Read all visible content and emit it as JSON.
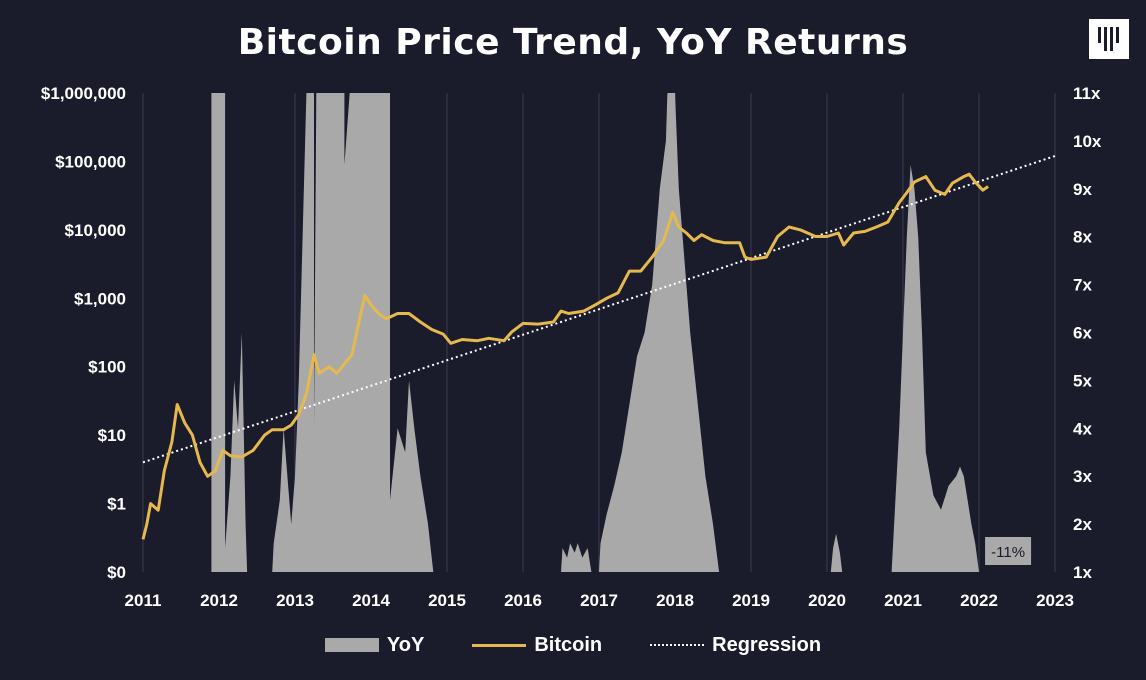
{
  "chart_data": {
    "type": "line",
    "title": "Bitcoin Price Trend, YoY Returns",
    "x_ticks": [
      "2011",
      "2012",
      "2013",
      "2014",
      "2015",
      "2016",
      "2017",
      "2018",
      "2019",
      "2020",
      "2021",
      "2022",
      "2023"
    ],
    "y_left_ticks": [
      "$0",
      "$1",
      "$10",
      "$100",
      "$1,000",
      "$10,000",
      "$100,000",
      "$1,000,000"
    ],
    "y_right_ticks": [
      "1x",
      "2x",
      "3x",
      "4x",
      "5x",
      "6x",
      "7x",
      "8x",
      "9x",
      "10x",
      "11x"
    ],
    "y_left_scale": "log",
    "grid": "vertical",
    "legend_position": "bottom",
    "annotation": "-11%",
    "colors": {
      "background": "#1a1b2b",
      "yoy": "#a9a9a9",
      "bitcoin": "#e5b94e",
      "regression": "#ffffff"
    },
    "series": [
      {
        "name": "Bitcoin",
        "axis": "left",
        "points": [
          [
            2011.0,
            0.3
          ],
          [
            2011.05,
            0.5
          ],
          [
            2011.1,
            1.0
          ],
          [
            2011.2,
            0.8
          ],
          [
            2011.28,
            3.0
          ],
          [
            2011.38,
            8.0
          ],
          [
            2011.45,
            28.0
          ],
          [
            2011.55,
            15.0
          ],
          [
            2011.65,
            10.0
          ],
          [
            2011.75,
            4.0
          ],
          [
            2011.85,
            2.5
          ],
          [
            2011.95,
            3.0
          ],
          [
            2012.05,
            6.0
          ],
          [
            2012.15,
            5.0
          ],
          [
            2012.3,
            4.8
          ],
          [
            2012.45,
            6.0
          ],
          [
            2012.6,
            10.0
          ],
          [
            2012.7,
            12.0
          ],
          [
            2012.85,
            12.0
          ],
          [
            2012.95,
            14.0
          ],
          [
            2013.05,
            20.0
          ],
          [
            2013.15,
            40.0
          ],
          [
            2013.25,
            150.0
          ],
          [
            2013.32,
            80.0
          ],
          [
            2013.45,
            100.0
          ],
          [
            2013.55,
            80.0
          ],
          [
            2013.65,
            110.0
          ],
          [
            2013.75,
            150.0
          ],
          [
            2013.85,
            500.0
          ],
          [
            2013.92,
            1100.0
          ],
          [
            2014.0,
            800.0
          ],
          [
            2014.1,
            600.0
          ],
          [
            2014.2,
            500.0
          ],
          [
            2014.35,
            600.0
          ],
          [
            2014.5,
            600.0
          ],
          [
            2014.65,
            450.0
          ],
          [
            2014.8,
            350.0
          ],
          [
            2014.95,
            300.0
          ],
          [
            2015.05,
            220.0
          ],
          [
            2015.2,
            250.0
          ],
          [
            2015.4,
            240.0
          ],
          [
            2015.55,
            260.0
          ],
          [
            2015.75,
            240.0
          ],
          [
            2015.85,
            320.0
          ],
          [
            2016.0,
            430.0
          ],
          [
            2016.2,
            420.0
          ],
          [
            2016.4,
            450.0
          ],
          [
            2016.5,
            650.0
          ],
          [
            2016.6,
            600.0
          ],
          [
            2016.8,
            650.0
          ],
          [
            2016.95,
            800.0
          ],
          [
            2017.1,
            1000.0
          ],
          [
            2017.25,
            1200.0
          ],
          [
            2017.4,
            2500.0
          ],
          [
            2017.55,
            2500.0
          ],
          [
            2017.7,
            4000.0
          ],
          [
            2017.85,
            7000.0
          ],
          [
            2017.97,
            18000.0
          ],
          [
            2018.05,
            11000.0
          ],
          [
            2018.15,
            9000.0
          ],
          [
            2018.25,
            7000.0
          ],
          [
            2018.35,
            8500.0
          ],
          [
            2018.5,
            7000.0
          ],
          [
            2018.65,
            6500.0
          ],
          [
            2018.85,
            6500.0
          ],
          [
            2018.92,
            4000.0
          ],
          [
            2019.0,
            3700.0
          ],
          [
            2019.2,
            4000.0
          ],
          [
            2019.35,
            8000.0
          ],
          [
            2019.5,
            11000.0
          ],
          [
            2019.65,
            10000.0
          ],
          [
            2019.85,
            8000.0
          ],
          [
            2020.0,
            8000.0
          ],
          [
            2020.15,
            9000.0
          ],
          [
            2020.22,
            6000.0
          ],
          [
            2020.35,
            9000.0
          ],
          [
            2020.5,
            9500.0
          ],
          [
            2020.65,
            11000.0
          ],
          [
            2020.8,
            13000.0
          ],
          [
            2020.95,
            25000.0
          ],
          [
            2021.05,
            35000.0
          ],
          [
            2021.15,
            50000.0
          ],
          [
            2021.3,
            60000.0
          ],
          [
            2021.42,
            38000.0
          ],
          [
            2021.55,
            33000.0
          ],
          [
            2021.65,
            48000.0
          ],
          [
            2021.8,
            60000.0
          ],
          [
            2021.87,
            65000.0
          ],
          [
            2021.95,
            50000.0
          ],
          [
            2022.05,
            38000.0
          ],
          [
            2022.12,
            43000.0
          ]
        ]
      },
      {
        "name": "Regression",
        "axis": "left",
        "points": [
          [
            2011.0,
            4.0
          ],
          [
            2023.0,
            120000.0
          ]
        ]
      },
      {
        "name": "YoY",
        "axis": "right",
        "points": [
          [
            2011.0,
            1.0
          ],
          [
            2011.9,
            1.0
          ],
          [
            2011.9,
            11.0
          ],
          [
            2012.08,
            11.0
          ],
          [
            2012.08,
            1.5
          ],
          [
            2012.15,
            3.0
          ],
          [
            2012.2,
            5.0
          ],
          [
            2012.25,
            4.0
          ],
          [
            2012.3,
            6.0
          ],
          [
            2012.35,
            2.0
          ],
          [
            2012.37,
            1.0
          ],
          [
            2012.7,
            1.0
          ],
          [
            2012.72,
            1.6
          ],
          [
            2012.8,
            2.5
          ],
          [
            2012.85,
            4.0
          ],
          [
            2012.9,
            3.0
          ],
          [
            2012.95,
            2.0
          ],
          [
            2013.0,
            3.0
          ],
          [
            2013.05,
            5.0
          ],
          [
            2013.1,
            8.0
          ],
          [
            2013.15,
            11.0
          ],
          [
            2013.25,
            11.0
          ],
          [
            2013.25,
            4.0
          ],
          [
            2013.28,
            11.0
          ],
          [
            2013.65,
            11.0
          ],
          [
            2013.65,
            9.5
          ],
          [
            2013.72,
            11.0
          ],
          [
            2014.25,
            11.0
          ],
          [
            2014.25,
            2.5
          ],
          [
            2014.35,
            4.0
          ],
          [
            2014.45,
            3.5
          ],
          [
            2014.5,
            5.0
          ],
          [
            2014.57,
            4.0
          ],
          [
            2014.65,
            3.0
          ],
          [
            2014.75,
            2.0
          ],
          [
            2014.82,
            1.0
          ],
          [
            2016.5,
            1.0
          ],
          [
            2016.52,
            1.5
          ],
          [
            2016.58,
            1.3
          ],
          [
            2016.62,
            1.6
          ],
          [
            2016.68,
            1.4
          ],
          [
            2016.72,
            1.6
          ],
          [
            2016.78,
            1.3
          ],
          [
            2016.85,
            1.5
          ],
          [
            2016.9,
            1.0
          ],
          [
            2017.0,
            1.0
          ],
          [
            2017.02,
            1.6
          ],
          [
            2017.1,
            2.2
          ],
          [
            2017.2,
            2.8
          ],
          [
            2017.3,
            3.5
          ],
          [
            2017.4,
            4.5
          ],
          [
            2017.5,
            5.5
          ],
          [
            2017.6,
            6.0
          ],
          [
            2017.7,
            7.0
          ],
          [
            2017.8,
            9.0
          ],
          [
            2017.88,
            10.0
          ],
          [
            2017.9,
            11.0
          ],
          [
            2018.0,
            11.0
          ],
          [
            2018.05,
            9.0
          ],
          [
            2018.1,
            8.0
          ],
          [
            2018.15,
            7.0
          ],
          [
            2018.2,
            6.0
          ],
          [
            2018.3,
            4.5
          ],
          [
            2018.4,
            3.0
          ],
          [
            2018.5,
            2.0
          ],
          [
            2018.58,
            1.0
          ],
          [
            2020.05,
            1.0
          ],
          [
            2020.08,
            1.5
          ],
          [
            2020.12,
            1.8
          ],
          [
            2020.17,
            1.4
          ],
          [
            2020.2,
            1.0
          ],
          [
            2020.85,
            1.0
          ],
          [
            2020.9,
            2.5
          ],
          [
            2020.95,
            4.0
          ],
          [
            2021.0,
            6.0
          ],
          [
            2021.05,
            8.0
          ],
          [
            2021.1,
            9.5
          ],
          [
            2021.15,
            9.0
          ],
          [
            2021.2,
            8.0
          ],
          [
            2021.25,
            6.0
          ],
          [
            2021.3,
            3.5
          ],
          [
            2021.4,
            2.6
          ],
          [
            2021.5,
            2.3
          ],
          [
            2021.6,
            2.8
          ],
          [
            2021.7,
            3.0
          ],
          [
            2021.75,
            3.2
          ],
          [
            2021.8,
            3.0
          ],
          [
            2021.85,
            2.5
          ],
          [
            2021.9,
            2.0
          ],
          [
            2021.95,
            1.6
          ],
          [
            2022.0,
            1.0
          ]
        ]
      }
    ]
  }
}
